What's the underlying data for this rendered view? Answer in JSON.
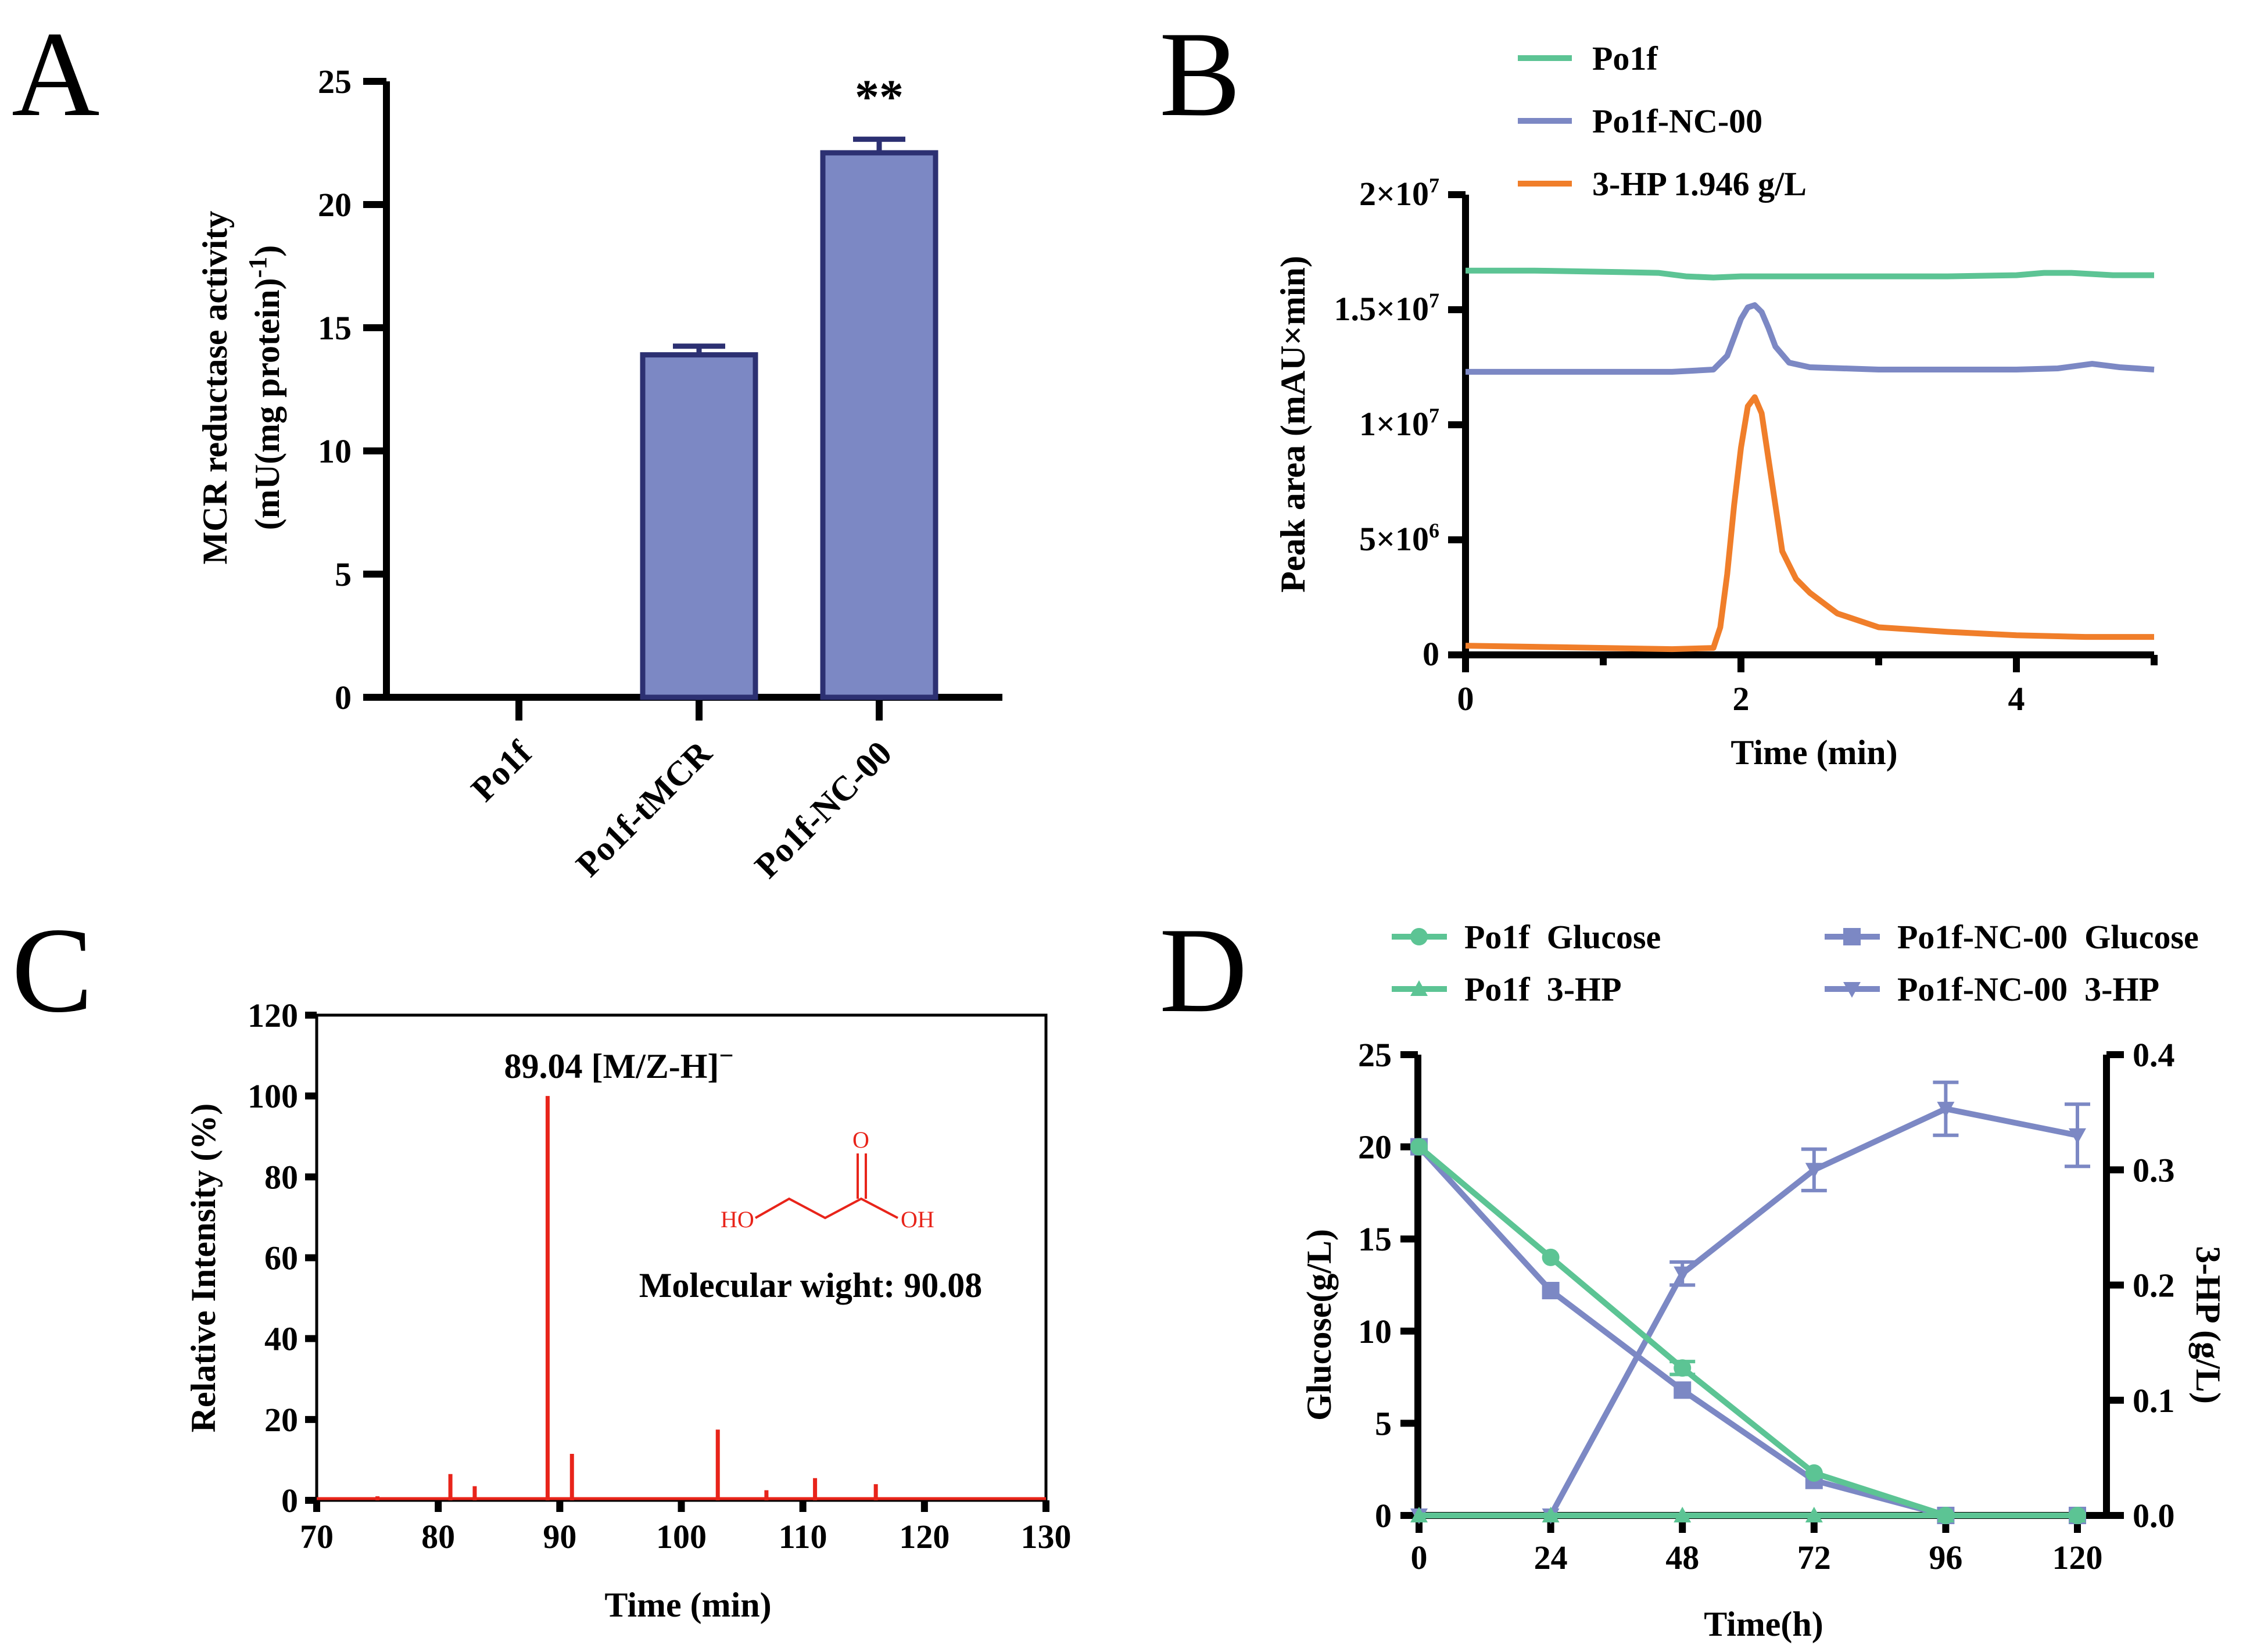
{
  "colors": {
    "green": "#5cc494",
    "blue": "#7c88c4",
    "orange": "#f07e2a",
    "red": "#e8241a",
    "bar_fill": "#7c88c4",
    "bar_edge": "#2c3072"
  },
  "chart_data": [
    {
      "panel": "A",
      "type": "bar",
      "categories": [
        "Po1f",
        "Po1f-tMCR",
        "Po1f-NC-00"
      ],
      "values": [
        0,
        13.9,
        22.1
      ],
      "errors": [
        0,
        0.35,
        0.55
      ],
      "significance": [
        "",
        "",
        "**"
      ],
      "ylabel_line1": "MCR reductase activity",
      "ylabel_line2": "(mU(mg protein)",
      "ylabel_sup": "-1",
      "ylabel_close": ")",
      "ylim": [
        0,
        25
      ],
      "yticks": [
        "0",
        "5",
        "10",
        "15",
        "20",
        "25"
      ]
    },
    {
      "panel": "B",
      "type": "line",
      "xlabel": "Time (min)",
      "ylabel": "Peak area (mAU×min)",
      "xlim": [
        0,
        5
      ],
      "ylim": [
        0,
        20000000
      ],
      "xticks": [
        "0",
        "2",
        "4"
      ],
      "ytick_labels": [
        {
          "value": 0,
          "base": "0",
          "exp": ""
        },
        {
          "value": 5000000,
          "base": "5×10",
          "exp": "6"
        },
        {
          "value": 10000000,
          "base": "1×10",
          "exp": "7"
        },
        {
          "value": 15000000,
          "base": "1.5×10",
          "exp": "7"
        },
        {
          "value": 20000000,
          "base": "2×10",
          "exp": "7"
        }
      ],
      "series": [
        {
          "name": "Po1f",
          "color": "green",
          "x": [
            0,
            0.5,
            1.0,
            1.4,
            1.6,
            1.8,
            2.0,
            2.5,
            3.0,
            3.5,
            4.0,
            4.2,
            4.4,
            4.7,
            5.0
          ],
          "y": [
            16700000,
            16700000,
            16650000,
            16600000,
            16450000,
            16400000,
            16450000,
            16450000,
            16450000,
            16450000,
            16500000,
            16600000,
            16600000,
            16500000,
            16500000
          ]
        },
        {
          "name": "Po1f-NC-00",
          "color": "blue",
          "x": [
            0,
            0.5,
            1.0,
            1.5,
            1.8,
            1.9,
            1.95,
            2.0,
            2.05,
            2.1,
            2.15,
            2.2,
            2.25,
            2.35,
            2.5,
            3.0,
            4.0,
            4.3,
            4.55,
            4.75,
            5.0
          ],
          "y": [
            12300000,
            12300000,
            12300000,
            12300000,
            12400000,
            13000000,
            13800000,
            14600000,
            15100000,
            15200000,
            14900000,
            14200000,
            13400000,
            12700000,
            12500000,
            12400000,
            12400000,
            12450000,
            12650000,
            12500000,
            12400000
          ]
        },
        {
          "name": "3-HP 1.946 g/L",
          "color": "orange",
          "x": [
            0,
            0.5,
            1.0,
            1.5,
            1.8,
            1.85,
            1.9,
            1.95,
            2.0,
            2.05,
            2.1,
            2.15,
            2.2,
            2.25,
            2.3,
            2.4,
            2.5,
            2.7,
            3.0,
            3.5,
            4.0,
            4.5,
            5.0
          ],
          "y": [
            400000,
            350000,
            300000,
            250000,
            300000,
            1200000,
            3500000,
            6500000,
            9000000,
            10800000,
            11200000,
            10500000,
            8500000,
            6500000,
            4500000,
            3300000,
            2700000,
            1800000,
            1200000,
            1000000,
            850000,
            780000,
            780000
          ]
        }
      ]
    },
    {
      "panel": "C",
      "type": "bar",
      "xlabel": "Time (min)",
      "ylabel": "Relative Intensity (%)",
      "xlim": [
        70,
        130
      ],
      "ylim": [
        0,
        120
      ],
      "xticks": [
        "70",
        "80",
        "90",
        "100",
        "110",
        "120",
        "130"
      ],
      "yticks": [
        "0",
        "20",
        "40",
        "60",
        "80",
        "100",
        "120"
      ],
      "x": [
        75,
        81,
        83,
        89,
        91,
        103,
        107,
        111,
        116
      ],
      "values": [
        1,
        6.5,
        3.5,
        100,
        11.5,
        17.5,
        2.5,
        5.5,
        4
      ],
      "annotation_peak": "89.04 [M/Z-H]",
      "annotation_peak_sup": "−",
      "molecule_labels": [
        "HO",
        "O",
        "OH"
      ],
      "molecular_weight": "Molecular wight: 90.08"
    },
    {
      "panel": "D",
      "type": "line",
      "xlabel": "Time(h)",
      "ylabel_left": "Glucose(g/L)",
      "ylabel_right": "3-HP (g/L)",
      "x": [
        0,
        24,
        48,
        72,
        96,
        120
      ],
      "xlim": [
        0,
        120
      ],
      "ylim_left": [
        0,
        25
      ],
      "ylim_right": [
        0,
        0.4
      ],
      "xticks": [
        "0",
        "24",
        "48",
        "72",
        "96",
        "120"
      ],
      "yticks_left": [
        "0",
        "5",
        "10",
        "15",
        "20",
        "25"
      ],
      "yticks_right": [
        "0.0",
        "0.1",
        "0.2",
        "0.3",
        "0.4"
      ],
      "series": [
        {
          "name": "Po1f  Glucose",
          "axis": "left",
          "marker": "circle",
          "color": "green",
          "values": [
            20,
            14,
            8,
            2.3,
            0,
            0
          ],
          "errors": [
            0,
            0,
            0.35,
            0,
            0,
            0
          ]
        },
        {
          "name": "Po1f  3-HP",
          "axis": "right",
          "marker": "triangle-up",
          "color": "green",
          "values": [
            0,
            0,
            0,
            0,
            0,
            0
          ],
          "errors": [
            0,
            0,
            0,
            0,
            0,
            0
          ]
        },
        {
          "name": "Po1f-NC-00  Glucose",
          "axis": "left",
          "marker": "square",
          "color": "blue",
          "values": [
            20,
            12.2,
            6.8,
            1.9,
            0,
            0
          ],
          "errors": [
            0,
            0,
            0,
            0,
            0,
            0
          ]
        },
        {
          "name": "Po1f-NC-00  3-HP",
          "axis": "right",
          "marker": "triangle-down",
          "color": "blue",
          "values": [
            0,
            0,
            0.21,
            0.3,
            0.353,
            0.33
          ],
          "errors": [
            0,
            0,
            0.01,
            0.018,
            0.023,
            0.027
          ]
        }
      ]
    }
  ],
  "panel_labels": [
    "A",
    "B",
    "C",
    "D"
  ]
}
